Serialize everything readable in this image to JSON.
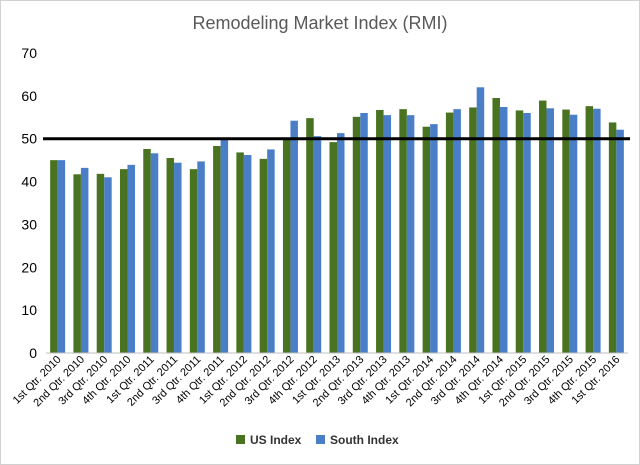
{
  "chart_data": {
    "type": "bar",
    "title": "Remodeling Market Index (RMI)",
    "xlabel": "",
    "ylabel": "",
    "ylim": [
      0,
      70
    ],
    "yticks": [
      0,
      10,
      20,
      30,
      40,
      50,
      60,
      70
    ],
    "reference_line": 50,
    "grid": false,
    "legend_position": "bottom",
    "categories": [
      "1st Qtr. 2010",
      "2nd Qtr. 2010",
      "3rd Qtr. 2010",
      "4th Qtr. 2010",
      "1st Qtr. 2011",
      "2nd Qtr. 2011",
      "3rd Qtr. 2011",
      "4th Qtr. 2011",
      "1st Qtr. 2012",
      "2nd Qtr. 2012",
      "3rd Qtr. 2012",
      "4th Qtr. 2012",
      "1st Qtr. 2013",
      "2nd Qtr. 2013",
      "3rd Qtr. 2013",
      "4th Qtr. 2013",
      "1st Qtr. 2014",
      "2nd Qtr. 2014",
      "3rd Qtr. 2014",
      "4th Qtr. 2014",
      "1st Qtr. 2015",
      "2nd Qtr. 2015",
      "3rd Qtr. 2015",
      "4th Qtr. 2015",
      "1st Qtr. 2016"
    ],
    "series": [
      {
        "name": "US Index",
        "color": "#4a7321",
        "values": [
          45,
          41.7,
          41.8,
          42.9,
          47.6,
          45.5,
          42.9,
          48.3,
          46.8,
          45.3,
          50,
          54.8,
          49.2,
          55.1,
          56.7,
          56.9,
          52.8,
          56.1,
          57.3,
          59.5,
          56.6,
          58.9,
          56.8,
          57.6,
          53.8
        ]
      },
      {
        "name": "South Index",
        "color": "#4a7fc8",
        "values": [
          45,
          43.2,
          41,
          43.9,
          46.6,
          44.4,
          44.7,
          50,
          46.2,
          47.5,
          54.2,
          50.6,
          51.3,
          56,
          55.5,
          55.5,
          53.4,
          56.9,
          62,
          57.4,
          56,
          57.1,
          55.6,
          57,
          52.1
        ]
      }
    ]
  }
}
